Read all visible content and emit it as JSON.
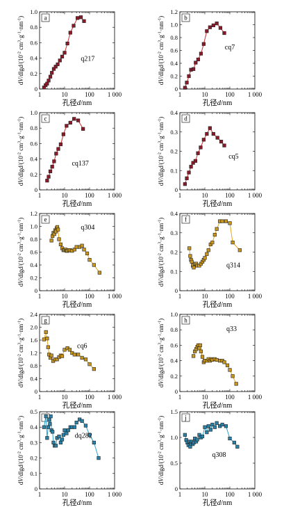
{
  "figure": {
    "x_tick_labels": [
      "1",
      "10",
      "100",
      "1 000"
    ],
    "x_label": {
      "prefix": "孔径",
      "var": "d",
      "suffix": "/nm"
    },
    "y_label": {
      "prefix": "d",
      "v": "V",
      "mid": "/dlg",
      "d": "d",
      "rest": "/(10",
      "e1": "-2",
      "s1": " cm",
      "e2": "3",
      "s2": "·g",
      "e3": "-1",
      "s3": "·nm",
      "e4": "-1",
      "end": ")"
    }
  },
  "colors": {
    "red": "#d42a2a",
    "yellow": "#e8a81a",
    "blue": "#2aa0d0",
    "red_fill": "#8a1a2a",
    "yellow_fill": "#c8961e",
    "blue_fill": "#2a82a8"
  },
  "chart_data": [
    {
      "type": "line",
      "panel": "a",
      "sample": "q217",
      "color": "red",
      "xlim": [
        1,
        1000
      ],
      "log_x": true,
      "ylim": [
        0,
        1.0
      ],
      "yticks": [
        0,
        0.2,
        0.4,
        0.6,
        0.8,
        1.0
      ],
      "ytick_labels": [
        "0",
        "0.2",
        "0.4",
        "0.6",
        "0.8",
        "1.0"
      ],
      "series": [
        {
          "x": [
            1.5,
            1.75,
            2.0,
            2.3,
            2.7,
            3.1,
            3.7,
            4.4,
            5.3,
            6.5,
            8.0,
            10,
            13,
            17,
            23,
            33,
            45,
            60
          ],
          "y": [
            0.02,
            0.05,
            0.07,
            0.11,
            0.16,
            0.21,
            0.26,
            0.29,
            0.32,
            0.37,
            0.42,
            0.47,
            0.59,
            0.73,
            0.82,
            0.92,
            0.93,
            0.88
          ]
        }
      ],
      "label_pos": [
        0.55,
        0.6
      ]
    },
    {
      "type": "line",
      "panel": "b",
      "sample": "cq7",
      "color": "red",
      "xlim": [
        1,
        1000
      ],
      "log_x": true,
      "ylim": [
        0,
        1.2
      ],
      "yticks": [
        0,
        0.2,
        0.4,
        0.6,
        0.8,
        1.0,
        1.2
      ],
      "ytick_labels": [
        "0",
        "0.2",
        "0.4",
        "0.6",
        "0.8",
        "1.0",
        "1.2"
      ],
      "series": [
        {
          "x": [
            1.6,
            1.9,
            2.3,
            2.8,
            3.5,
            4.3,
            5.4,
            7.0,
            9.0,
            12,
            16,
            22,
            30,
            42,
            60
          ],
          "y": [
            0.02,
            0.1,
            0.2,
            0.3,
            0.31,
            0.41,
            0.46,
            0.55,
            0.7,
            0.9,
            0.96,
            0.99,
            1.02,
            0.95,
            0.87
          ]
        }
      ],
      "label_pos": [
        0.6,
        0.45
      ]
    },
    {
      "type": "line",
      "panel": "c",
      "sample": "cq137",
      "color": "red",
      "xlim": [
        1,
        1000
      ],
      "log_x": true,
      "ylim": [
        0,
        1.0
      ],
      "yticks": [
        0,
        0.2,
        0.4,
        0.6,
        0.8,
        1.0
      ],
      "ytick_labels": [
        "0",
        "0.2",
        "0.4",
        "0.6",
        "0.8",
        "1.0"
      ],
      "series": [
        {
          "x": [
            2.0,
            2.3,
            2.7,
            3.2,
            3.8,
            4.6,
            5.6,
            7.0,
            9.0,
            12,
            17,
            24,
            35,
            55
          ],
          "y": [
            0.12,
            0.17,
            0.24,
            0.3,
            0.37,
            0.47,
            0.53,
            0.59,
            0.72,
            0.83,
            0.87,
            0.92,
            0.9,
            0.79
          ]
        }
      ],
      "label_pos": [
        0.43,
        0.65
      ]
    },
    {
      "type": "line",
      "panel": "d",
      "sample": "cq5",
      "color": "red",
      "xlim": [
        1,
        1000
      ],
      "log_x": true,
      "ylim": [
        0,
        0.4
      ],
      "yticks": [
        0,
        0.1,
        0.2,
        0.3,
        0.4
      ],
      "ytick_labels": [
        "0",
        "0.1",
        "0.2",
        "0.3",
        "0.4"
      ],
      "series": [
        {
          "x": [
            1.6,
            1.9,
            2.3,
            2.8,
            3.4,
            4.2,
            5.3,
            6.8,
            9.0,
            12,
            16,
            22,
            32,
            45,
            60
          ],
          "y": [
            0.03,
            0.06,
            0.09,
            0.12,
            0.14,
            0.15,
            0.19,
            0.22,
            0.26,
            0.29,
            0.32,
            0.29,
            0.27,
            0.25,
            0.23
          ]
        }
      ],
      "label_pos": [
        0.65,
        0.56
      ]
    },
    {
      "type": "line",
      "panel": "e",
      "sample": "q304",
      "color": "yellow",
      "xlim": [
        1,
        1000
      ],
      "log_x": true,
      "ylim": [
        0,
        1.2
      ],
      "yticks": [
        0,
        0.2,
        0.4,
        0.6,
        0.8,
        1.0,
        1.2
      ],
      "ytick_labels": [
        "0",
        "0.2",
        "0.4",
        "0.6",
        "0.8",
        "1.0",
        "1.2"
      ],
      "series": [
        {
          "x": [
            3.0,
            3.3,
            3.6,
            3.9,
            4.2,
            4.5,
            4.8,
            5.1,
            5.5,
            6,
            7,
            8,
            9,
            10,
            11,
            12,
            13,
            15,
            17,
            20,
            25,
            30,
            40,
            50,
            60,
            80,
            100,
            150,
            250
          ],
          "y": [
            0.78,
            0.85,
            0.9,
            0.88,
            0.94,
            0.92,
            0.97,
            0.99,
            0.95,
            0.8,
            0.72,
            0.66,
            0.63,
            0.63,
            0.64,
            0.62,
            0.62,
            0.63,
            0.63,
            0.62,
            0.64,
            0.68,
            0.68,
            0.7,
            0.64,
            0.58,
            0.48,
            0.4,
            0.28
          ]
        }
      ],
      "label_pos": [
        0.55,
        0.17
      ]
    },
    {
      "type": "line",
      "panel": "f",
      "sample": "q314",
      "color": "yellow",
      "xlim": [
        1,
        1000
      ],
      "log_x": true,
      "ylim": [
        0,
        0.4
      ],
      "yticks": [
        0,
        0.1,
        0.2,
        0.3,
        0.4
      ],
      "ytick_labels": [
        "0",
        "0.1",
        "0.2",
        "0.3",
        "0.4"
      ],
      "series": [
        {
          "x": [
            2.4,
            2.6,
            2.8,
            3.0,
            3.3,
            3.6,
            4.0,
            4.5,
            5,
            6,
            7,
            8,
            9,
            10,
            12,
            14,
            17,
            20,
            25,
            30,
            40,
            50,
            70,
            100,
            130,
            250
          ],
          "y": [
            0.22,
            0.18,
            0.16,
            0.15,
            0.13,
            0.12,
            0.14,
            0.14,
            0.13,
            0.13,
            0.14,
            0.15,
            0.16,
            0.17,
            0.19,
            0.21,
            0.24,
            0.25,
            0.29,
            0.32,
            0.36,
            0.36,
            0.36,
            0.35,
            0.25,
            0.21
          ]
        }
      ],
      "label_pos": [
        0.62,
        0.66
      ]
    },
    {
      "type": "line",
      "panel": "g",
      "sample": "cq6",
      "color": "yellow",
      "xlim": [
        1,
        1000
      ],
      "log_x": true,
      "ylim": [
        0,
        2.4
      ],
      "yticks": [
        0,
        0.4,
        0.8,
        1.2,
        1.6,
        2.0,
        2.4
      ],
      "ytick_labels": [
        "0",
        "0.4",
        "0.8",
        "1.2",
        "1.6",
        "2.0",
        "2.4"
      ],
      "series": [
        {
          "x": [
            1.5,
            1.8,
            2.0,
            2.2,
            2.4,
            2.7,
            3.0,
            3.5,
            4.2,
            5,
            6,
            7,
            8,
            10,
            13,
            16,
            20,
            25,
            35,
            50,
            70,
            100,
            150
          ],
          "y": [
            1.62,
            1.85,
            1.65,
            1.38,
            1.15,
            1.05,
            1.12,
            0.95,
            1.0,
            1.0,
            1.07,
            1.12,
            1.1,
            1.3,
            1.35,
            1.3,
            1.2,
            1.15,
            1.15,
            1.05,
            1.0,
            0.85,
            0.7
          ]
        }
      ],
      "label_pos": [
        0.5,
        0.4
      ]
    },
    {
      "type": "line",
      "panel": "h",
      "sample": "q33",
      "color": "yellow",
      "xlim": [
        1,
        1000
      ],
      "log_x": true,
      "ylim": [
        0,
        1.0
      ],
      "yticks": [
        0,
        0.2,
        0.4,
        0.6,
        0.8,
        1.0
      ],
      "ytick_labels": [
        "0",
        "0.2",
        "0.4",
        "0.6",
        "0.8",
        "1.0"
      ],
      "series": [
        {
          "x": [
            3.5,
            4.0,
            4.5,
            5,
            5.5,
            6,
            6.5,
            7,
            8,
            9,
            10,
            12,
            14,
            16,
            18,
            20,
            25,
            30,
            40,
            50,
            60,
            80,
            100,
            130,
            180
          ],
          "y": [
            0.46,
            0.52,
            0.55,
            0.58,
            0.6,
            0.56,
            0.6,
            0.52,
            0.45,
            0.38,
            0.4,
            0.4,
            0.42,
            0.4,
            0.42,
            0.41,
            0.42,
            0.41,
            0.4,
            0.4,
            0.38,
            0.34,
            0.28,
            0.2,
            0.1
          ]
        }
      ],
      "label_pos": [
        0.62,
        0.18
      ]
    },
    {
      "type": "line",
      "panel": "i",
      "sample": "dq282",
      "color": "blue",
      "xlim": [
        1,
        1000
      ],
      "log_x": true,
      "ylim": [
        0,
        0.5
      ],
      "yticks": [
        0,
        0.1,
        0.2,
        0.3,
        0.4,
        0.5
      ],
      "ytick_labels": [
        "0",
        "0.1",
        "0.2",
        "0.3",
        "0.4",
        "0.5"
      ],
      "series": [
        {
          "x": [
            1.5,
            1.8,
            2.0,
            2.2,
            2.4,
            2.6,
            2.8,
            3.0,
            3.3,
            3.6,
            4.0,
            4.5,
            5,
            6,
            7,
            8,
            9,
            10,
            12,
            14,
            17,
            20,
            25,
            30,
            40,
            50,
            70,
            100,
            150,
            230
          ],
          "y": [
            0.4,
            0.47,
            0.33,
            0.4,
            0.45,
            0.42,
            0.47,
            0.38,
            0.37,
            0.3,
            0.28,
            0.28,
            0.33,
            0.34,
            0.3,
            0.32,
            0.35,
            0.38,
            0.36,
            0.38,
            0.4,
            0.4,
            0.4,
            0.43,
            0.45,
            0.44,
            0.41,
            0.35,
            0.3,
            0.2
          ]
        }
      ],
      "label_pos": [
        0.47,
        0.3
      ]
    },
    {
      "type": "line",
      "panel": "j",
      "sample": "q308",
      "color": "blue",
      "xlim": [
        1,
        1000
      ],
      "log_x": true,
      "ylim": [
        0,
        1.5
      ],
      "yticks": [
        0,
        0.5,
        1.0,
        1.5
      ],
      "ytick_labels": [
        "0",
        "0.5",
        "1.0",
        "1.5"
      ],
      "series": [
        {
          "x": [
            1.6,
            1.8,
            2.0,
            2.2,
            2.4,
            2.6,
            2.8,
            3.0,
            3.3,
            3.6,
            4,
            4.5,
            5,
            6,
            7,
            8,
            10,
            12,
            14,
            17,
            20,
            25,
            30,
            40,
            50,
            70,
            100,
            150,
            200
          ],
          "y": [
            1.05,
            0.95,
            0.9,
            0.85,
            0.92,
            0.82,
            0.88,
            0.92,
            0.87,
            0.9,
            0.98,
            0.92,
            0.96,
            1.05,
            1.0,
            1.02,
            1.2,
            1.1,
            1.22,
            1.15,
            1.25,
            1.2,
            1.28,
            1.22,
            1.25,
            1.22,
            0.98,
            0.9,
            0.82
          ]
        }
      ],
      "label_pos": [
        0.43,
        0.55
      ]
    }
  ]
}
